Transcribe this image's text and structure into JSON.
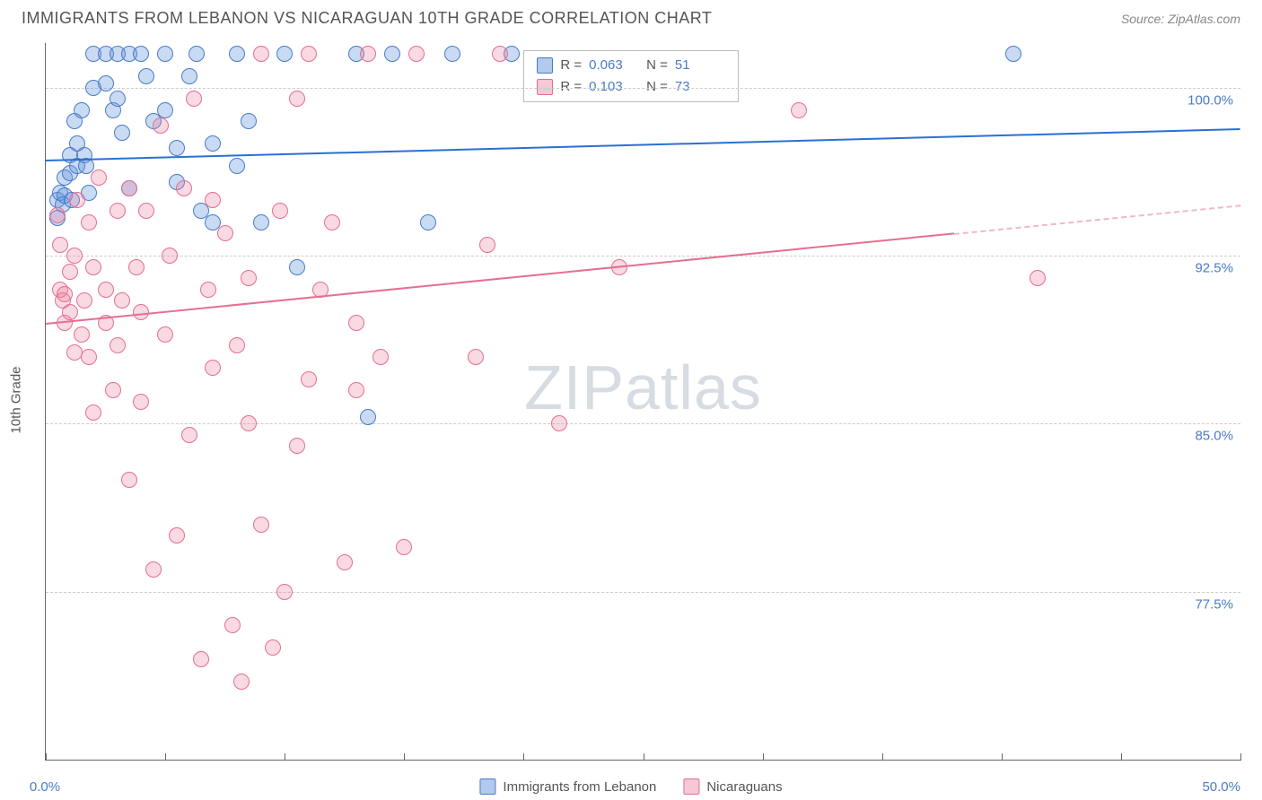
{
  "title": "IMMIGRANTS FROM LEBANON VS NICARAGUAN 10TH GRADE CORRELATION CHART",
  "source_prefix": "Source: ",
  "source_name": "ZipAtlas.com",
  "watermark_a": "ZIP",
  "watermark_b": "atlas",
  "chart": {
    "type": "scatter",
    "xlim": [
      0,
      50
    ],
    "ylim": [
      70,
      102
    ],
    "x_ticks_minor": [
      0,
      5,
      10,
      15,
      20,
      25,
      30,
      35,
      40,
      45,
      50
    ],
    "y_ticks": [
      77.5,
      85.0,
      92.5,
      100.0
    ],
    "y_tick_labels": [
      "77.5%",
      "85.0%",
      "92.5%",
      "100.0%"
    ],
    "x_labels": [
      {
        "v": 0,
        "t": "0.0%"
      },
      {
        "v": 50,
        "t": "50.0%"
      }
    ],
    "y_axis_title": "10th Grade",
    "background_color": "#ffffff",
    "grid_color": "#cccccc",
    "axis_color": "#666666",
    "label_color": "#4a7bc8",
    "title_color": "#555555",
    "title_fontsize": 18,
    "label_fontsize": 15,
    "marker_size": 18
  },
  "series": [
    {
      "key": "lebanon",
      "label": "Immigrants from Lebanon",
      "color_fill": "rgba(100,150,220,0.35)",
      "color_stroke": "#4a7bc8",
      "trend_color": "#2a6fd6",
      "R": "0.063",
      "N": "51",
      "trend": {
        "x0": 0,
        "y0": 96.8,
        "x1": 50,
        "y1": 98.2,
        "dash_after_x": 50
      },
      "points": [
        [
          0.5,
          95.0
        ],
        [
          0.6,
          95.3
        ],
        [
          0.7,
          94.8
        ],
        [
          0.8,
          96.0
        ],
        [
          0.8,
          95.2
        ],
        [
          1.0,
          97.0
        ],
        [
          1.0,
          96.2
        ],
        [
          1.1,
          95.0
        ],
        [
          1.2,
          98.5
        ],
        [
          1.3,
          97.5
        ],
        [
          1.3,
          96.5
        ],
        [
          1.5,
          99.0
        ],
        [
          1.6,
          97.0
        ],
        [
          1.7,
          96.5
        ],
        [
          1.8,
          95.3
        ],
        [
          2.0,
          101.5
        ],
        [
          2.0,
          100.0
        ],
        [
          2.5,
          101.5
        ],
        [
          2.5,
          100.2
        ],
        [
          2.8,
          99.0
        ],
        [
          3.0,
          101.5
        ],
        [
          3.0,
          99.5
        ],
        [
          3.2,
          98.0
        ],
        [
          3.5,
          101.5
        ],
        [
          3.5,
          95.5
        ],
        [
          4.0,
          101.5
        ],
        [
          4.2,
          100.5
        ],
        [
          4.5,
          98.5
        ],
        [
          5.0,
          101.5
        ],
        [
          5.0,
          99.0
        ],
        [
          5.5,
          97.3
        ],
        [
          5.5,
          95.8
        ],
        [
          6.0,
          100.5
        ],
        [
          6.3,
          101.5
        ],
        [
          6.5,
          94.5
        ],
        [
          7.0,
          97.5
        ],
        [
          7.0,
          94.0
        ],
        [
          8.0,
          101.5
        ],
        [
          8.0,
          96.5
        ],
        [
          8.5,
          98.5
        ],
        [
          9.0,
          94.0
        ],
        [
          10.0,
          101.5
        ],
        [
          10.5,
          92.0
        ],
        [
          13.0,
          101.5
        ],
        [
          13.5,
          85.3
        ],
        [
          14.5,
          101.5
        ],
        [
          16.0,
          94.0
        ],
        [
          17.0,
          101.5
        ],
        [
          19.5,
          101.5
        ],
        [
          40.5,
          101.5
        ],
        [
          0.5,
          94.2
        ]
      ]
    },
    {
      "key": "nicaraguans",
      "label": "Nicaraguans",
      "color_fill": "rgba(235,130,160,0.30)",
      "color_stroke": "#e56f90",
      "trend_color": "#e56f90",
      "R": "0.103",
      "N": "73",
      "trend": {
        "x0": 0,
        "y0": 89.5,
        "x1": 50,
        "y1": 94.8,
        "dash_after_x": 38
      },
      "points": [
        [
          0.5,
          94.3
        ],
        [
          0.6,
          93.0
        ],
        [
          0.6,
          91.0
        ],
        [
          0.7,
          90.5
        ],
        [
          0.8,
          89.5
        ],
        [
          0.8,
          90.8
        ],
        [
          1.0,
          91.8
        ],
        [
          1.0,
          90.0
        ],
        [
          1.2,
          88.2
        ],
        [
          1.2,
          92.5
        ],
        [
          1.3,
          95.0
        ],
        [
          1.5,
          89.0
        ],
        [
          1.6,
          90.5
        ],
        [
          1.8,
          88.0
        ],
        [
          1.8,
          94.0
        ],
        [
          2.0,
          92.0
        ],
        [
          2.0,
          85.5
        ],
        [
          2.2,
          96.0
        ],
        [
          2.5,
          91.0
        ],
        [
          2.5,
          89.5
        ],
        [
          2.8,
          86.5
        ],
        [
          3.0,
          94.5
        ],
        [
          3.0,
          88.5
        ],
        [
          3.2,
          90.5
        ],
        [
          3.5,
          95.5
        ],
        [
          3.5,
          82.5
        ],
        [
          3.8,
          92.0
        ],
        [
          4.0,
          86.0
        ],
        [
          4.0,
          90.0
        ],
        [
          4.2,
          94.5
        ],
        [
          4.5,
          78.5
        ],
        [
          4.8,
          98.3
        ],
        [
          5.0,
          89.0
        ],
        [
          5.2,
          92.5
        ],
        [
          5.5,
          80.0
        ],
        [
          5.8,
          95.5
        ],
        [
          6.0,
          84.5
        ],
        [
          6.2,
          99.5
        ],
        [
          6.5,
          74.5
        ],
        [
          6.8,
          91.0
        ],
        [
          7.0,
          87.5
        ],
        [
          7.0,
          95.0
        ],
        [
          7.5,
          93.5
        ],
        [
          7.8,
          76.0
        ],
        [
          8.0,
          88.5
        ],
        [
          8.2,
          73.5
        ],
        [
          8.5,
          91.5
        ],
        [
          8.5,
          85.0
        ],
        [
          9.0,
          101.5
        ],
        [
          9.0,
          80.5
        ],
        [
          9.5,
          75.0
        ],
        [
          9.8,
          94.5
        ],
        [
          10.0,
          77.5
        ],
        [
          10.5,
          99.5
        ],
        [
          10.5,
          84.0
        ],
        [
          11.0,
          87.0
        ],
        [
          11.0,
          101.5
        ],
        [
          11.5,
          91.0
        ],
        [
          12.0,
          94.0
        ],
        [
          12.5,
          78.8
        ],
        [
          13.0,
          86.5
        ],
        [
          13.0,
          89.5
        ],
        [
          13.5,
          101.5
        ],
        [
          14.0,
          88.0
        ],
        [
          15.0,
          79.5
        ],
        [
          15.5,
          101.5
        ],
        [
          18.0,
          88.0
        ],
        [
          18.5,
          93.0
        ],
        [
          19.0,
          101.5
        ],
        [
          21.5,
          85.0
        ],
        [
          24.0,
          92.0
        ],
        [
          31.5,
          99.0
        ],
        [
          41.5,
          91.5
        ]
      ]
    }
  ],
  "legend_top": {
    "r_label": "R =",
    "n_label": "N ="
  },
  "legend_bottom": {}
}
